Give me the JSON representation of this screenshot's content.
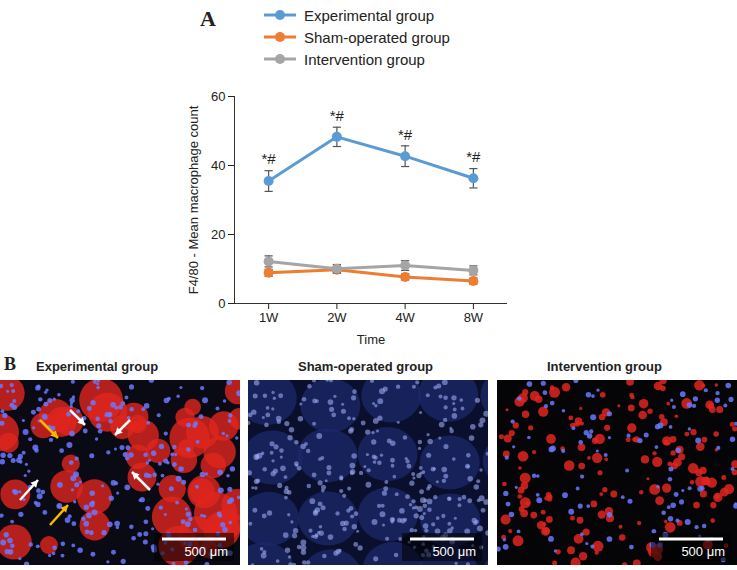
{
  "chart_data": {
    "type": "line",
    "panel": "A",
    "x_label": "Time",
    "y_label": "F4/80 - Mean macrophage count",
    "categories": [
      "1W",
      "2W",
      "4W",
      "8W"
    ],
    "ylim": [
      0,
      60
    ],
    "yticks": [
      0,
      20,
      40,
      60
    ],
    "grid": false,
    "legend": "top",
    "marker": "circle",
    "line_style": "solid",
    "series": [
      {
        "name": "Experimental group",
        "color": "#5b9bd5",
        "values": [
          35.5,
          48.3,
          42.7,
          36.3
        ],
        "errors": [
          3.0,
          2.8,
          3.0,
          2.8
        ],
        "annotations": [
          "*#",
          "*#",
          "*#",
          "*#"
        ]
      },
      {
        "name": "Sham-operated group",
        "color": "#ed7d31",
        "values": [
          8.9,
          9.8,
          7.7,
          6.5
        ],
        "errors": [
          1.0,
          1.0,
          0.9,
          0.9
        ]
      },
      {
        "name": "Intervention group",
        "color": "#a5a5a5",
        "values": [
          12.2,
          10.1,
          11.0,
          9.6
        ],
        "errors": [
          1.6,
          1.2,
          1.4,
          1.3
        ]
      }
    ]
  },
  "panel_b": {
    "panel": "B",
    "images": [
      {
        "title": "Experimental group",
        "scale_bar": "500 μm"
      },
      {
        "title": "Sham-operated group",
        "scale_bar": "500 μm"
      },
      {
        "title": "Intervention group",
        "scale_bar": "500 μm"
      }
    ]
  }
}
